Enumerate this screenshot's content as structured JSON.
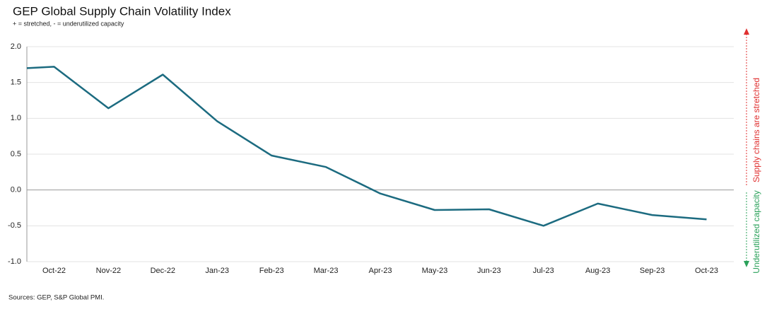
{
  "chart_data": {
    "type": "line",
    "title": "GEP Global Supply Chain Volatility Index",
    "subtitle": "+ = stretched, - = underutilized capacity",
    "source": "Sources: GEP, S&P Global PMI.",
    "annotations": [
      "Supply chains are stretched",
      "Underutilized capacity"
    ],
    "categories": [
      null,
      "Oct-22",
      "Nov-22",
      "Dec-22",
      "Jan-23",
      "Feb-23",
      "Mar-23",
      "Apr-23",
      "May-23",
      "Jun-23",
      "Jul-23",
      "Aug-23",
      "Sep-23",
      "Oct-23"
    ],
    "series": [
      {
        "name": "GEP Global Supply Chain Volatility Index",
        "color": "#1c6b80",
        "values": [
          1.7,
          1.72,
          1.14,
          1.61,
          0.96,
          0.48,
          0.32,
          -0.05,
          -0.28,
          -0.27,
          -0.5,
          -0.19,
          -0.35,
          -0.41
        ]
      }
    ],
    "ylim": [
      -1,
      2
    ],
    "yticks": [
      {
        "value": 2,
        "label": "2.0"
      },
      {
        "value": 1.5,
        "label": "1.5"
      },
      {
        "value": 1,
        "label": "1.0"
      },
      {
        "value": 0.5,
        "label": "0.5"
      },
      {
        "value": 0,
        "label": "0.0"
      },
      {
        "value": -0.5,
        "label": "-0.5"
      },
      {
        "value": -1,
        "label": "-1.0"
      }
    ],
    "grid": true,
    "annotation_colors": [
      "#e03030",
      "#2aa15a"
    ]
  }
}
